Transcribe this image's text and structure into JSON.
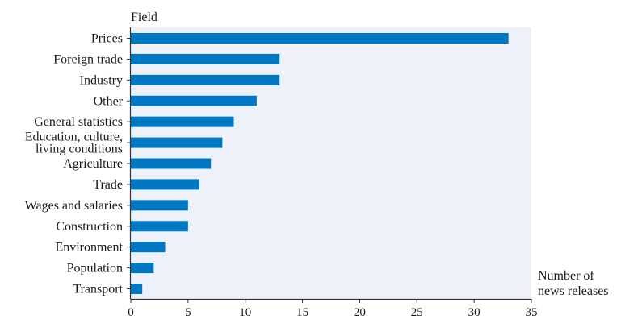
{
  "chart_data": {
    "type": "bar",
    "orientation": "horizontal",
    "title": "",
    "ylabel": "Field",
    "xlabel_lines": [
      "Number of",
      "news releases"
    ],
    "categories": [
      "Prices",
      "Foreign trade",
      "Industry",
      "Other",
      "General statistics",
      "Education, culture, living conditions",
      "Agriculture",
      "Trade",
      "Wages and salaries",
      "Construction",
      "Environment",
      "Population",
      "Transport"
    ],
    "category_display": [
      [
        "Prices"
      ],
      [
        "Foreign trade"
      ],
      [
        "Industry"
      ],
      [
        "Other"
      ],
      [
        "General statistics"
      ],
      [
        "Education, culture,",
        "living conditions"
      ],
      [
        "Agriculture"
      ],
      [
        "Trade"
      ],
      [
        "Wages and salaries"
      ],
      [
        "Construction"
      ],
      [
        "Environment"
      ],
      [
        "Population"
      ],
      [
        "Transport"
      ]
    ],
    "values": [
      33,
      13,
      13,
      11,
      9,
      8,
      7,
      6,
      5,
      5,
      3,
      2,
      1
    ],
    "xlim": [
      0,
      35
    ],
    "xticks": [
      0,
      5,
      10,
      15,
      20,
      25,
      30,
      35
    ],
    "grid": false,
    "legend": "none",
    "colors": {
      "bar": "#0077c0",
      "plot_background": "#edf2fa",
      "axis": "#333333"
    }
  }
}
